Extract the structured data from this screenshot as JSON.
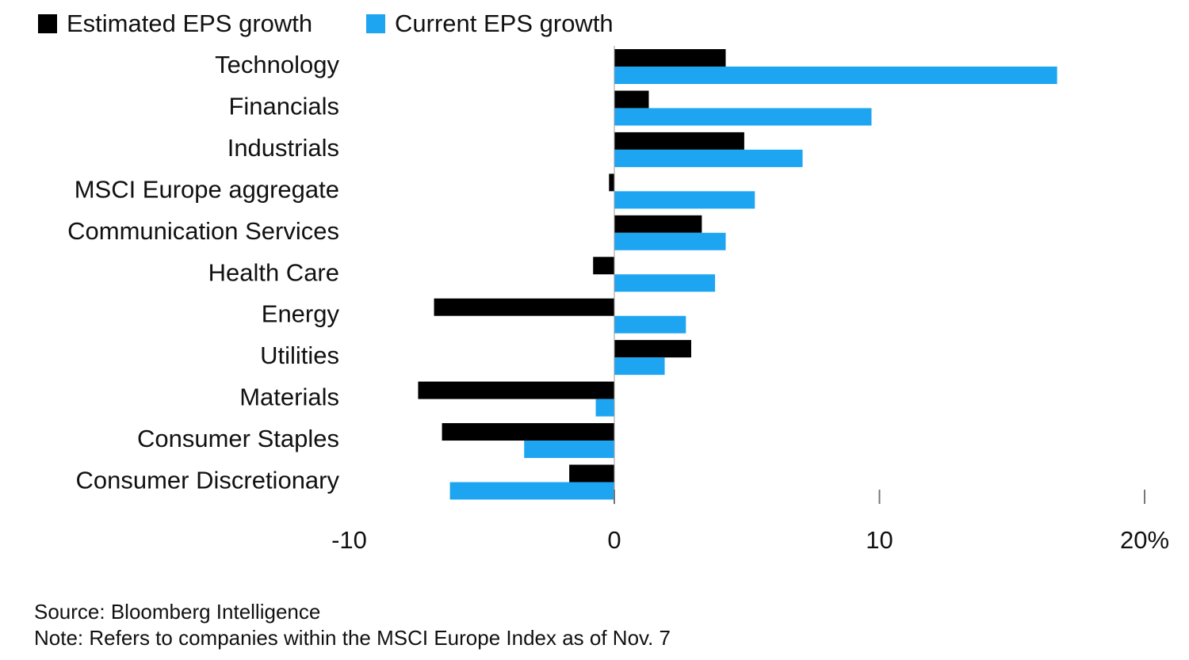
{
  "chart_data": {
    "type": "bar",
    "orientation": "horizontal",
    "categories": [
      "Technology",
      "Financials",
      "Industrials",
      "MSCI Europe aggregate",
      "Communication Services",
      "Health Care",
      "Energy",
      "Utilities",
      "Materials",
      "Consumer Staples",
      "Consumer Discretionary"
    ],
    "series": [
      {
        "name": "Estimated EPS growth",
        "color": "#000000",
        "values": [
          4.2,
          1.3,
          4.9,
          -0.2,
          3.3,
          -0.8,
          -6.8,
          2.9,
          -7.4,
          -6.5,
          -1.7
        ]
      },
      {
        "name": "Current EPS growth",
        "color": "#1ea5f2",
        "values": [
          16.7,
          9.7,
          7.1,
          5.3,
          4.2,
          3.8,
          2.7,
          1.9,
          -0.7,
          -3.4,
          -6.2
        ]
      }
    ],
    "xlim": [
      -10,
      20
    ],
    "xticks": [
      -10,
      0,
      10,
      20
    ],
    "xtick_labels": [
      "-10",
      "0",
      "10",
      "20%"
    ],
    "legend_position": "top-left",
    "grid": false
  },
  "footer": {
    "source": "Source: Bloomberg Intelligence",
    "note": "Note: Refers to companies within the MSCI Europe Index as of Nov. 7"
  }
}
